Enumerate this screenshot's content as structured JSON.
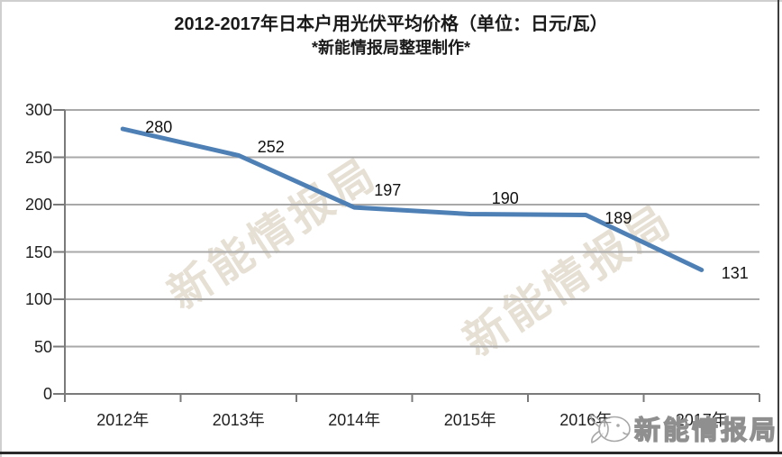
{
  "title": "2012-2017年日本户用光伏平均价格（单位：日元/瓦）",
  "subtitle": "*新能情报局整理制作*",
  "watermark": {
    "diagonal_text": "新能情报局",
    "logo_text": "新能情报局"
  },
  "chart_data": {
    "type": "line",
    "title": "2012-2017年日本户用光伏平均价格（单位：日元/瓦）",
    "subtitle": "*新能情报局整理制作*",
    "categories": [
      "2012年",
      "2013年",
      "2014年",
      "2015年",
      "2016年",
      "2017年"
    ],
    "series": [
      {
        "name": "日本户用光伏平均价格(日元/瓦)",
        "values": [
          280,
          252,
          197,
          190,
          189,
          131
        ]
      }
    ],
    "data_labels": [
      "280",
      "252",
      "197",
      "190",
      "189",
      "131"
    ],
    "ylim": [
      0,
      300
    ],
    "yticks": [
      0,
      50,
      100,
      150,
      200,
      250,
      300
    ],
    "xlabel": "",
    "ylabel": "",
    "grid": true,
    "legend_position": "none",
    "line_color": "#4E80B6",
    "gridline_color": "#A9A9A9",
    "axis_color": "#7A7A7A",
    "text_color": "#1A1A1A"
  }
}
